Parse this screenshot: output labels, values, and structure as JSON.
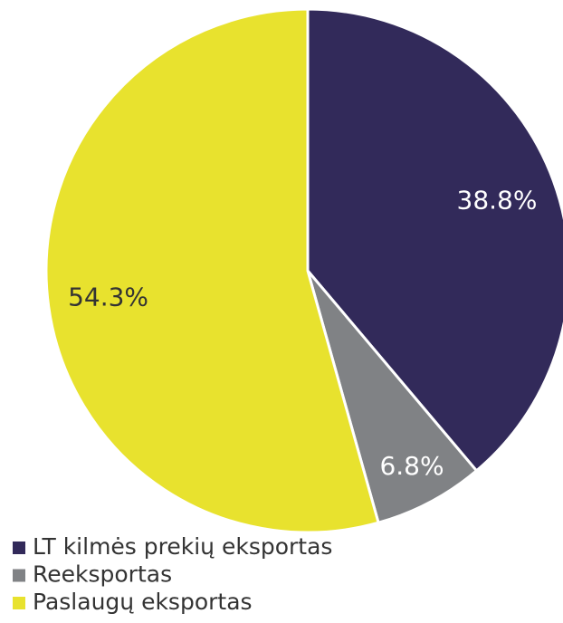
{
  "chart_data": {
    "type": "pie",
    "categories": [
      "LT kilmės prekių eksportas",
      "Reeksportas",
      "Paslaugų eksportas"
    ],
    "values": [
      38.8,
      6.8,
      54.3
    ],
    "value_labels": [
      "38.8%",
      "6.8%",
      "54.3%"
    ],
    "colors": [
      "#322a5a",
      "#808285",
      "#e8e22e"
    ],
    "legend": "bottom-left"
  }
}
